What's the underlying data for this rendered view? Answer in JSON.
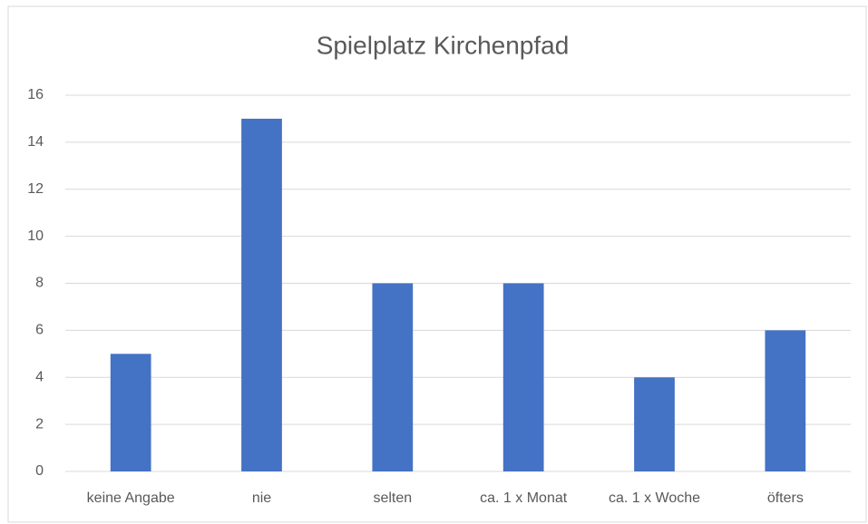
{
  "chart_data": {
    "type": "bar",
    "title": "Spielplatz Kirchenpfad",
    "categories": [
      "keine Angabe",
      "nie",
      "selten",
      "ca. 1 x Monat",
      "ca. 1 x Woche",
      "öfters"
    ],
    "values": [
      5,
      15,
      8,
      8,
      4,
      6
    ],
    "color": "#4472c4",
    "ylim": [
      0,
      16
    ],
    "yticks": [
      0,
      2,
      4,
      6,
      8,
      10,
      12,
      14,
      16
    ],
    "grid": true
  }
}
